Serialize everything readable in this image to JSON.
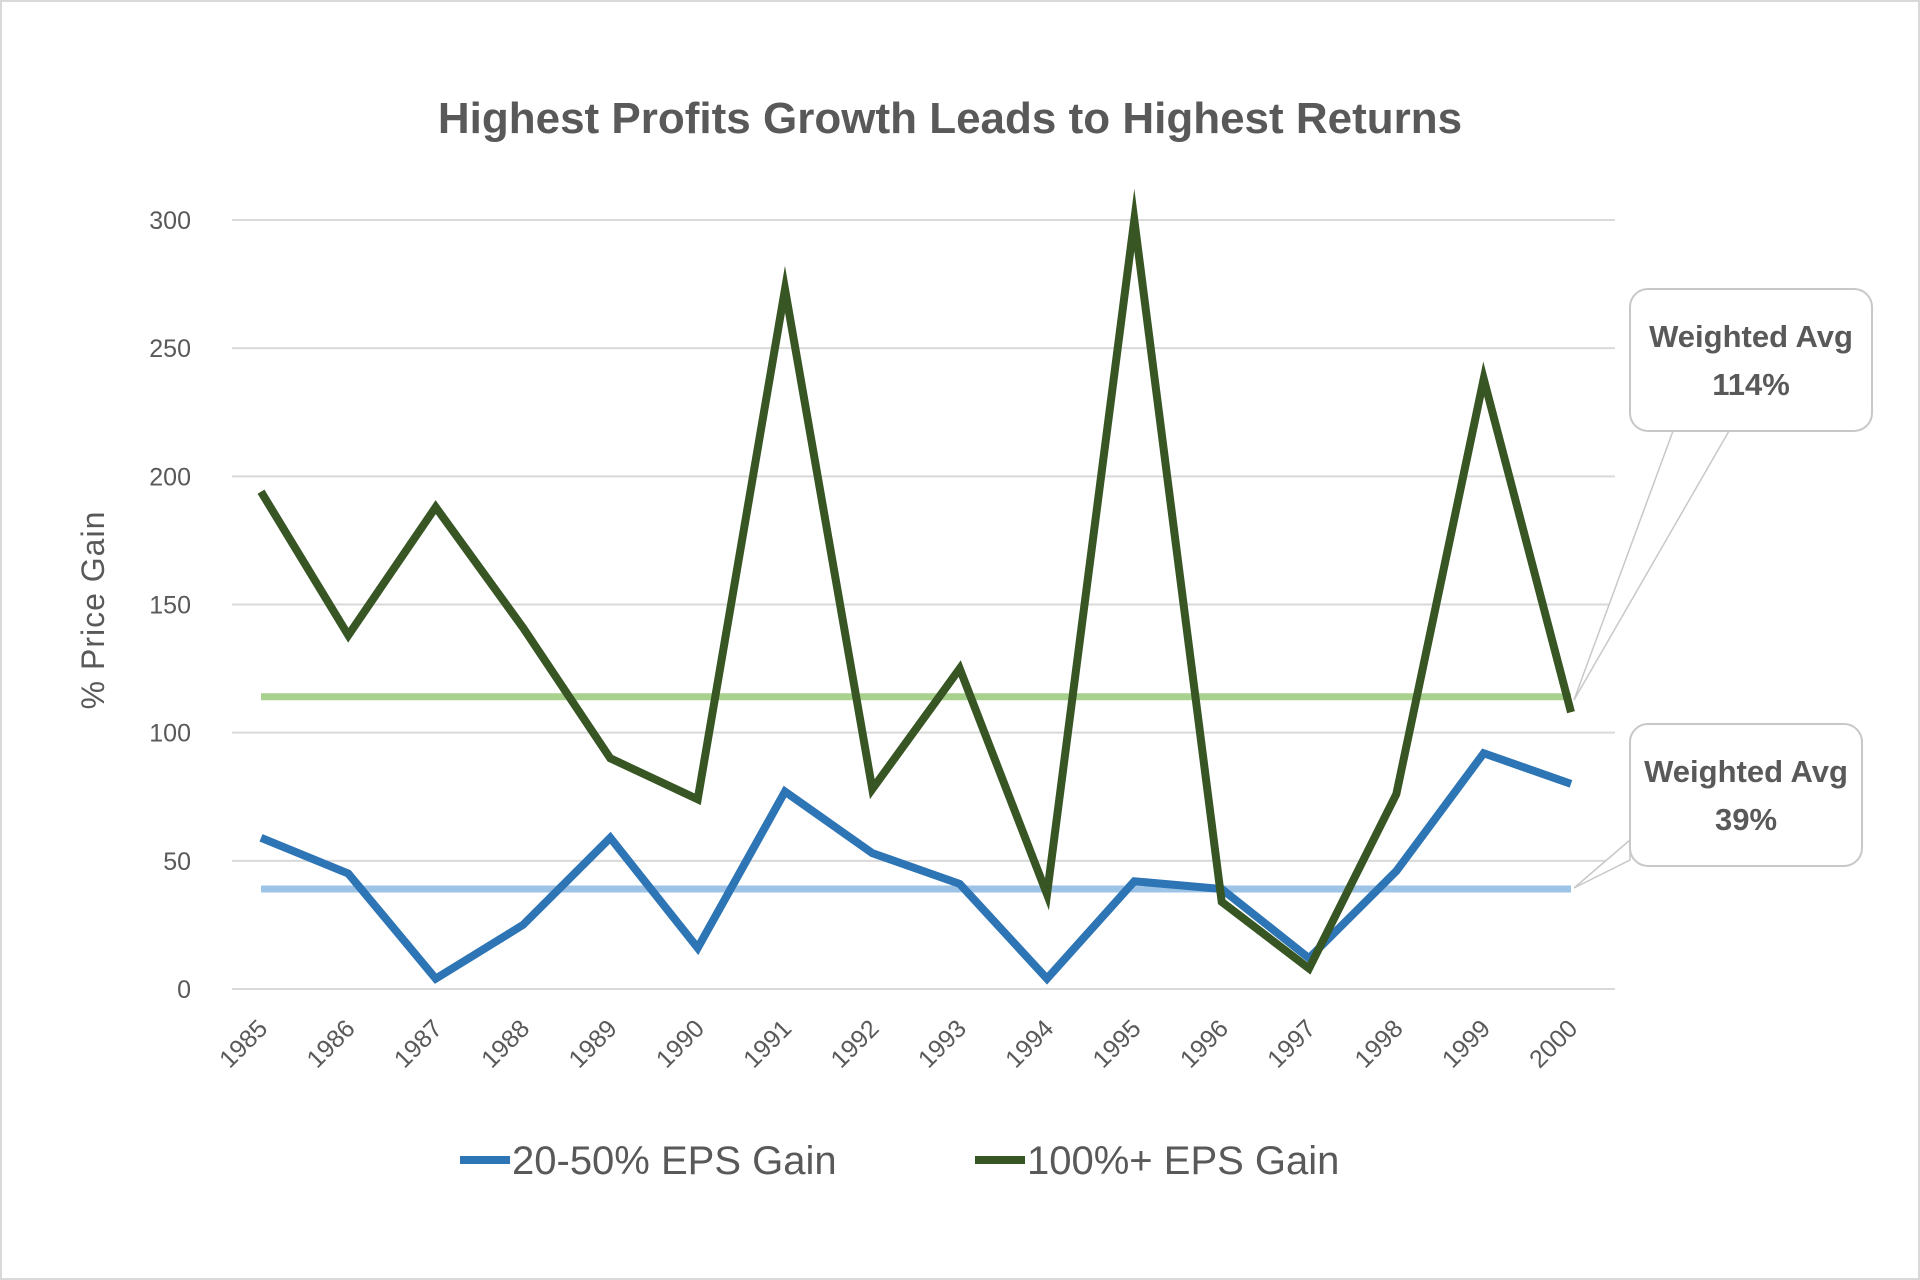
{
  "chart_data": {
    "type": "line",
    "title": "Highest Profits Growth Leads to Highest Returns",
    "xlabel": "",
    "ylabel": "% Price Gain",
    "ylim": [
      0,
      300
    ],
    "yticks": [
      0,
      50,
      100,
      150,
      200,
      250,
      300
    ],
    "grid": true,
    "legend_position": "bottom",
    "categories": [
      "1985",
      "1986",
      "1987",
      "1988",
      "1989",
      "1990",
      "1991",
      "1992",
      "1993",
      "1994",
      "1995",
      "1996",
      "1997",
      "1998",
      "1999",
      "2000"
    ],
    "series": [
      {
        "name": "20-50% EPS Gain",
        "color": "#2e75b6",
        "values": [
          59,
          45,
          4,
          25,
          59,
          16,
          77,
          53,
          41,
          4,
          42,
          39,
          12,
          46,
          92,
          80
        ]
      },
      {
        "name": "100%+ EPS Gain",
        "color": "#375623",
        "values": [
          194,
          138,
          188,
          141,
          90,
          74,
          273,
          78,
          125,
          37,
          300,
          34,
          8,
          76,
          238,
          108
        ]
      }
    ],
    "reference_lines": [
      {
        "value": 114,
        "color": "#a9d18e",
        "label_line1": "Weighted Avg",
        "label_line2": "114%"
      },
      {
        "value": 39,
        "color": "#9dc3e6",
        "label_line1": "Weighted Avg",
        "label_line2": "39%"
      }
    ]
  }
}
